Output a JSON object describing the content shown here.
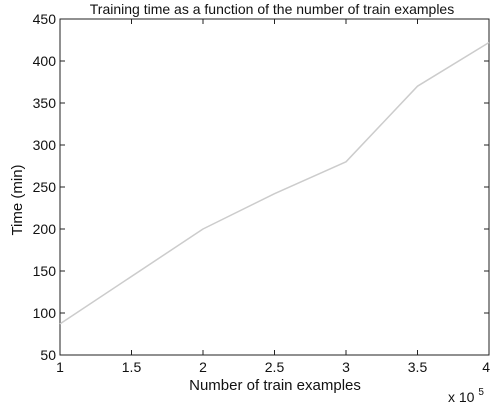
{
  "chart_data": {
    "type": "line",
    "title": "Training time as a function of the number of train examples",
    "xlabel": "Number of train examples",
    "ylabel": "Time (min)",
    "x_multiplier_label": "x 10",
    "x_multiplier_exponent": "5",
    "xlim": [
      1,
      4
    ],
    "ylim": [
      50,
      450
    ],
    "x_ticks": [
      "1",
      "1.5",
      "2",
      "2.5",
      "3",
      "3.5",
      "4"
    ],
    "y_ticks": [
      "50",
      "100",
      "150",
      "200",
      "250",
      "300",
      "350",
      "400",
      "450"
    ],
    "grid": false,
    "series": [
      {
        "x": [
          1,
          2,
          2.5,
          3,
          3.5,
          4
        ],
        "y": [
          87,
          200,
          242,
          280,
          370,
          422
        ],
        "color": "#cccccc"
      }
    ]
  }
}
